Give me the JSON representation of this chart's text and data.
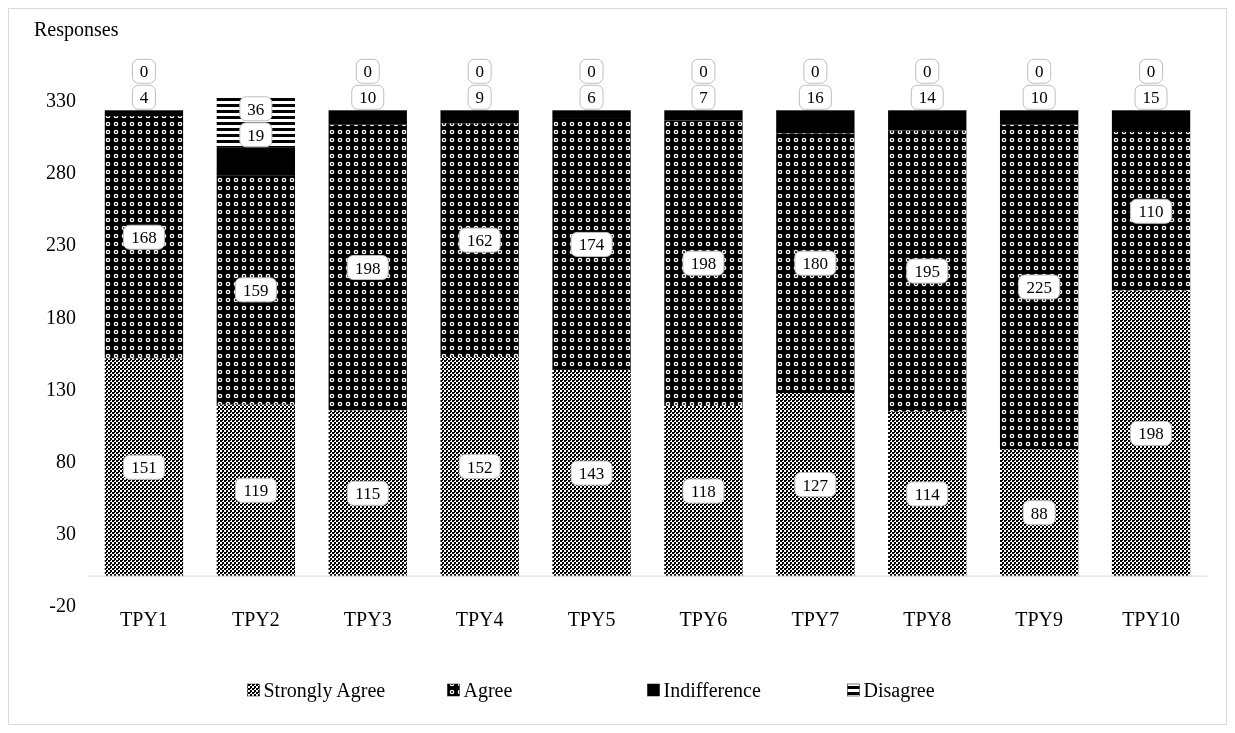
{
  "chart_data": {
    "type": "bar",
    "stacked": true,
    "ylabel": "Responses",
    "categories": [
      "TPY1",
      "TPY2",
      "TPY3",
      "TPY4",
      "TPY5",
      "TPY6",
      "TPY7",
      "TPY8",
      "TPY9",
      "TPY10"
    ],
    "series": [
      {
        "name": "Strongly Agree",
        "color": "#000000",
        "values": [
          151,
          119,
          115,
          152,
          143,
          118,
          127,
          114,
          88,
          198
        ]
      },
      {
        "name": "Agree",
        "color": "#000000",
        "values": [
          168,
          159,
          198,
          162,
          174,
          198,
          180,
          195,
          225,
          110
        ]
      },
      {
        "name": "Indifference",
        "color": "#000000",
        "values": [
          4,
          19,
          10,
          9,
          6,
          7,
          16,
          14,
          10,
          15
        ]
      },
      {
        "name": "Disagree",
        "color": "#000000",
        "values": [
          0,
          36,
          0,
          0,
          0,
          0,
          0,
          0,
          0,
          0
        ]
      }
    ],
    "ylim": [
      -20,
      335
    ],
    "yticks": [
      -20,
      30,
      80,
      130,
      180,
      230,
      280,
      330
    ],
    "data_labels": true,
    "legend": "bottom",
    "grid": false
  }
}
